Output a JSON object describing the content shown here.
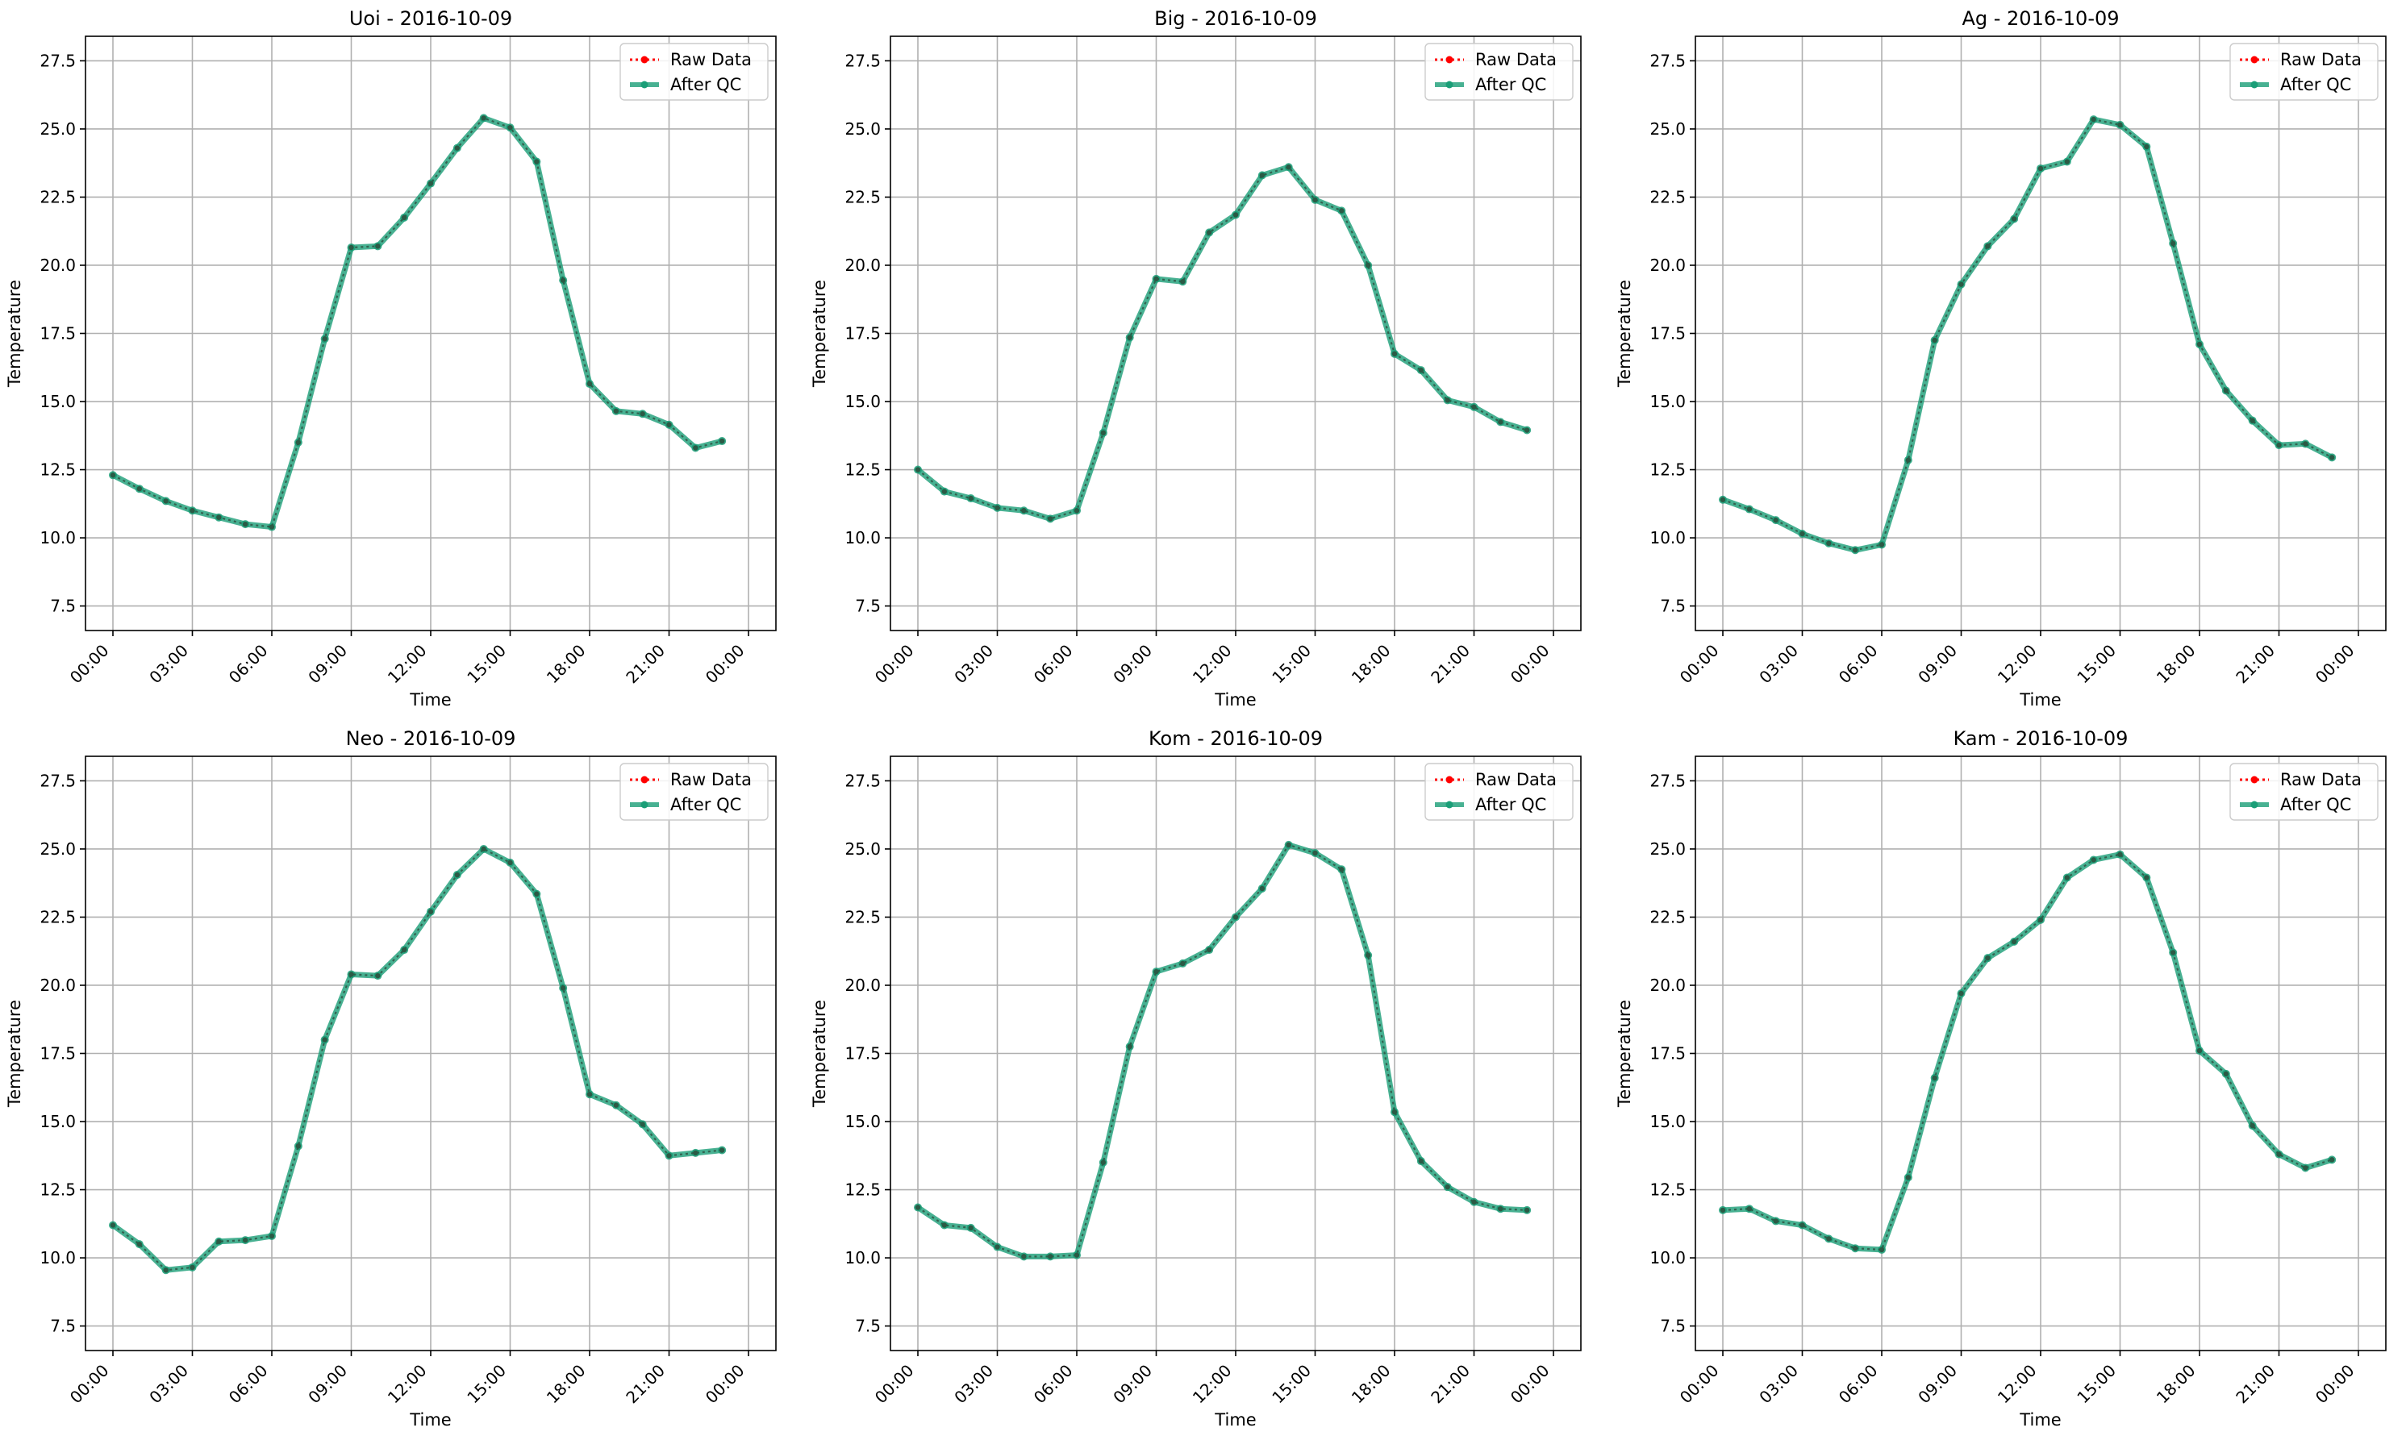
{
  "chart_data": [
    {
      "type": "line",
      "title": "Uoi - 2016-10-09",
      "xlabel": "Time",
      "ylabel": "Temperature",
      "x_tick_labels": [
        "00:00",
        "03:00",
        "06:00",
        "09:00",
        "12:00",
        "15:00",
        "18:00",
        "21:00",
        "00:00"
      ],
      "y_tick_labels": [
        "7.5",
        "10.0",
        "12.5",
        "15.0",
        "17.5",
        "20.0",
        "22.5",
        "25.0",
        "27.5"
      ],
      "ylim": [
        6.6,
        28.4
      ],
      "grid": true,
      "legend": "upper right",
      "x": [
        "00:00",
        "01:00",
        "02:00",
        "03:00",
        "04:00",
        "05:00",
        "06:00",
        "07:00",
        "08:00",
        "09:00",
        "10:00",
        "11:00",
        "12:00",
        "13:00",
        "14:00",
        "15:00",
        "16:00",
        "17:00",
        "18:00",
        "19:00",
        "20:00",
        "21:00",
        "22:00",
        "23:00"
      ],
      "series": [
        {
          "name": "Raw Data",
          "color": "#ff0000",
          "values": [
            12.3,
            11.8,
            11.35,
            11.0,
            10.75,
            10.5,
            10.4,
            13.5,
            17.3,
            20.65,
            20.7,
            21.75,
            23.0,
            24.3,
            25.4,
            25.05,
            23.8,
            19.45,
            15.65,
            14.65,
            14.55,
            14.15,
            13.3,
            13.55
          ]
        },
        {
          "name": "After QC",
          "color": "#1a9e77",
          "values": [
            12.3,
            11.8,
            11.35,
            11.0,
            10.75,
            10.5,
            10.4,
            13.5,
            17.3,
            20.65,
            20.7,
            21.75,
            23.0,
            24.3,
            25.4,
            25.05,
            23.8,
            19.45,
            15.65,
            14.65,
            14.55,
            14.15,
            13.3,
            13.55
          ]
        }
      ]
    },
    {
      "type": "line",
      "title": "Big - 2016-10-09",
      "xlabel": "Time",
      "ylabel": "Temperature",
      "x_tick_labels": [
        "00:00",
        "03:00",
        "06:00",
        "09:00",
        "12:00",
        "15:00",
        "18:00",
        "21:00",
        "00:00"
      ],
      "y_tick_labels": [
        "7.5",
        "10.0",
        "12.5",
        "15.0",
        "17.5",
        "20.0",
        "22.5",
        "25.0",
        "27.5"
      ],
      "ylim": [
        6.6,
        28.4
      ],
      "grid": true,
      "legend": "upper right",
      "x": [
        "00:00",
        "01:00",
        "02:00",
        "03:00",
        "04:00",
        "05:00",
        "06:00",
        "07:00",
        "08:00",
        "09:00",
        "10:00",
        "11:00",
        "12:00",
        "13:00",
        "14:00",
        "15:00",
        "16:00",
        "17:00",
        "18:00",
        "19:00",
        "20:00",
        "21:00",
        "22:00",
        "23:00"
      ],
      "series": [
        {
          "name": "Raw Data",
          "color": "#ff0000",
          "values": [
            12.5,
            11.7,
            11.45,
            11.1,
            11.0,
            10.7,
            11.0,
            13.85,
            17.35,
            19.5,
            19.4,
            21.2,
            21.85,
            23.3,
            23.6,
            22.4,
            22.0,
            20.0,
            16.75,
            16.15,
            15.05,
            14.8,
            14.25,
            13.95
          ]
        },
        {
          "name": "After QC",
          "color": "#1a9e77",
          "values": [
            12.5,
            11.7,
            11.45,
            11.1,
            11.0,
            10.7,
            11.0,
            13.85,
            17.35,
            19.5,
            19.4,
            21.2,
            21.85,
            23.3,
            23.6,
            22.4,
            22.0,
            20.0,
            16.75,
            16.15,
            15.05,
            14.8,
            14.25,
            13.95
          ]
        }
      ]
    },
    {
      "type": "line",
      "title": "Ag - 2016-10-09",
      "xlabel": "Time",
      "ylabel": "Temperature",
      "x_tick_labels": [
        "00:00",
        "03:00",
        "06:00",
        "09:00",
        "12:00",
        "15:00",
        "18:00",
        "21:00",
        "00:00"
      ],
      "y_tick_labels": [
        "7.5",
        "10.0",
        "12.5",
        "15.0",
        "17.5",
        "20.0",
        "22.5",
        "25.0",
        "27.5"
      ],
      "ylim": [
        6.6,
        28.4
      ],
      "grid": true,
      "legend": "upper right",
      "x": [
        "00:00",
        "01:00",
        "02:00",
        "03:00",
        "04:00",
        "05:00",
        "06:00",
        "07:00",
        "08:00",
        "09:00",
        "10:00",
        "11:00",
        "12:00",
        "13:00",
        "14:00",
        "15:00",
        "16:00",
        "17:00",
        "18:00",
        "19:00",
        "20:00",
        "21:00",
        "22:00",
        "23:00"
      ],
      "series": [
        {
          "name": "Raw Data",
          "color": "#ff0000",
          "values": [
            11.4,
            11.05,
            10.65,
            10.15,
            9.8,
            9.55,
            9.75,
            12.85,
            17.25,
            19.3,
            20.7,
            21.7,
            23.55,
            23.8,
            25.35,
            25.15,
            24.35,
            20.8,
            17.1,
            15.4,
            14.3,
            13.4,
            13.45,
            12.95
          ]
        },
        {
          "name": "After QC",
          "color": "#1a9e77",
          "values": [
            11.4,
            11.05,
            10.65,
            10.15,
            9.8,
            9.55,
            9.75,
            12.85,
            17.25,
            19.3,
            20.7,
            21.7,
            23.55,
            23.8,
            25.35,
            25.15,
            24.35,
            20.8,
            17.1,
            15.4,
            14.3,
            13.4,
            13.45,
            12.95
          ]
        }
      ]
    },
    {
      "type": "line",
      "title": "Neo - 2016-10-09",
      "xlabel": "Time",
      "ylabel": "Temperature",
      "x_tick_labels": [
        "00:00",
        "03:00",
        "06:00",
        "09:00",
        "12:00",
        "15:00",
        "18:00",
        "21:00",
        "00:00"
      ],
      "y_tick_labels": [
        "7.5",
        "10.0",
        "12.5",
        "15.0",
        "17.5",
        "20.0",
        "22.5",
        "25.0",
        "27.5"
      ],
      "ylim": [
        6.6,
        28.4
      ],
      "grid": true,
      "legend": "upper right",
      "x": [
        "00:00",
        "01:00",
        "02:00",
        "03:00",
        "04:00",
        "05:00",
        "06:00",
        "07:00",
        "08:00",
        "09:00",
        "10:00",
        "11:00",
        "12:00",
        "13:00",
        "14:00",
        "15:00",
        "16:00",
        "17:00",
        "18:00",
        "19:00",
        "20:00",
        "21:00",
        "22:00",
        "23:00"
      ],
      "series": [
        {
          "name": "Raw Data",
          "color": "#ff0000",
          "values": [
            11.2,
            10.5,
            9.55,
            9.65,
            10.6,
            10.65,
            10.8,
            14.1,
            18.0,
            20.4,
            20.35,
            21.3,
            22.7,
            24.05,
            25.0,
            24.5,
            23.35,
            19.9,
            16.0,
            15.6,
            14.9,
            13.75,
            13.85,
            13.95
          ]
        },
        {
          "name": "After QC",
          "color": "#1a9e77",
          "values": [
            11.2,
            10.5,
            9.55,
            9.65,
            10.6,
            10.65,
            10.8,
            14.1,
            18.0,
            20.4,
            20.35,
            21.3,
            22.7,
            24.05,
            25.0,
            24.5,
            23.35,
            19.9,
            16.0,
            15.6,
            14.9,
            13.75,
            13.85,
            13.95
          ]
        }
      ]
    },
    {
      "type": "line",
      "title": "Kom - 2016-10-09",
      "xlabel": "Time",
      "ylabel": "Temperature",
      "x_tick_labels": [
        "00:00",
        "03:00",
        "06:00",
        "09:00",
        "12:00",
        "15:00",
        "18:00",
        "21:00",
        "00:00"
      ],
      "y_tick_labels": [
        "7.5",
        "10.0",
        "12.5",
        "15.0",
        "17.5",
        "20.0",
        "22.5",
        "25.0",
        "27.5"
      ],
      "ylim": [
        6.6,
        28.4
      ],
      "grid": true,
      "legend": "upper right",
      "x": [
        "00:00",
        "01:00",
        "02:00",
        "03:00",
        "04:00",
        "05:00",
        "06:00",
        "07:00",
        "08:00",
        "09:00",
        "10:00",
        "11:00",
        "12:00",
        "13:00",
        "14:00",
        "15:00",
        "16:00",
        "17:00",
        "18:00",
        "19:00",
        "20:00",
        "21:00",
        "22:00",
        "23:00"
      ],
      "series": [
        {
          "name": "Raw Data",
          "color": "#ff0000",
          "values": [
            11.85,
            11.2,
            11.1,
            10.4,
            10.05,
            10.05,
            10.1,
            13.5,
            17.75,
            20.5,
            20.8,
            21.3,
            22.5,
            23.55,
            25.15,
            24.85,
            24.25,
            21.1,
            15.35,
            13.55,
            12.6,
            12.05,
            11.8,
            11.75
          ]
        },
        {
          "name": "After QC",
          "color": "#1a9e77",
          "values": [
            11.85,
            11.2,
            11.1,
            10.4,
            10.05,
            10.05,
            10.1,
            13.5,
            17.75,
            20.5,
            20.8,
            21.3,
            22.5,
            23.55,
            25.15,
            24.85,
            24.25,
            21.1,
            15.35,
            13.55,
            12.6,
            12.05,
            11.8,
            11.75
          ]
        }
      ]
    },
    {
      "type": "line",
      "title": "Kam - 2016-10-09",
      "xlabel": "Time",
      "ylabel": "Temperature",
      "x_tick_labels": [
        "00:00",
        "03:00",
        "06:00",
        "09:00",
        "12:00",
        "15:00",
        "18:00",
        "21:00",
        "00:00"
      ],
      "y_tick_labels": [
        "7.5",
        "10.0",
        "12.5",
        "15.0",
        "17.5",
        "20.0",
        "22.5",
        "25.0",
        "27.5"
      ],
      "ylim": [
        6.6,
        28.4
      ],
      "grid": true,
      "legend": "upper right",
      "x": [
        "00:00",
        "01:00",
        "02:00",
        "03:00",
        "04:00",
        "05:00",
        "06:00",
        "07:00",
        "08:00",
        "09:00",
        "10:00",
        "11:00",
        "12:00",
        "13:00",
        "14:00",
        "15:00",
        "16:00",
        "17:00",
        "18:00",
        "19:00",
        "20:00",
        "21:00",
        "22:00",
        "23:00"
      ],
      "series": [
        {
          "name": "Raw Data",
          "color": "#ff0000",
          "values": [
            11.75,
            11.8,
            11.35,
            11.2,
            10.7,
            10.35,
            10.3,
            12.95,
            16.6,
            19.7,
            21.0,
            21.6,
            22.4,
            23.95,
            24.6,
            24.8,
            23.95,
            21.2,
            17.6,
            16.75,
            14.85,
            13.8,
            13.3,
            13.6
          ]
        },
        {
          "name": "After QC",
          "color": "#1a9e77",
          "values": [
            11.75,
            11.8,
            11.35,
            11.2,
            10.7,
            10.35,
            10.3,
            12.95,
            16.6,
            19.7,
            21.0,
            21.6,
            22.4,
            23.95,
            24.6,
            24.8,
            23.95,
            21.2,
            17.6,
            16.75,
            14.85,
            13.8,
            13.3,
            13.6
          ]
        }
      ]
    }
  ]
}
